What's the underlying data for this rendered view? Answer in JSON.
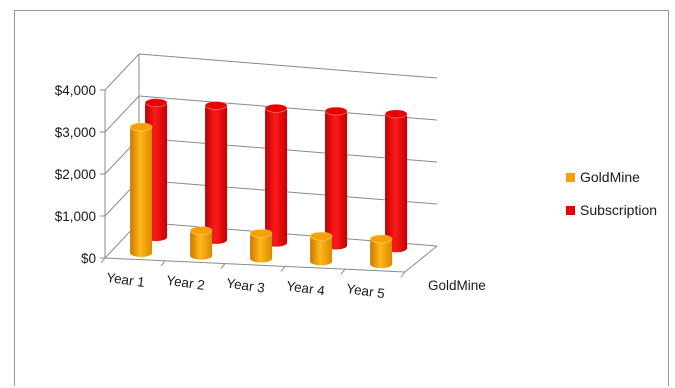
{
  "chart_data": {
    "type": "bar",
    "style": "3d-cylinder",
    "categories": [
      "Year 1",
      "Year 2",
      "Year 3",
      "Year 4",
      "Year 5"
    ],
    "series": [
      {
        "name": "GoldMine",
        "values": [
          3000,
          600,
          600,
          600,
          600
        ],
        "color": "#f5a100"
      },
      {
        "name": "Subscription",
        "values": [
          3200,
          3200,
          3200,
          3200,
          3200
        ],
        "color": "#e80000"
      }
    ],
    "y_ticks": [
      "$0",
      "$1,000",
      "$2,000",
      "$3,000",
      "$4,000"
    ],
    "ylim": [
      0,
      4000
    ],
    "depth_axis_label": "GoldMine",
    "legend_position": "right",
    "grid": true
  }
}
